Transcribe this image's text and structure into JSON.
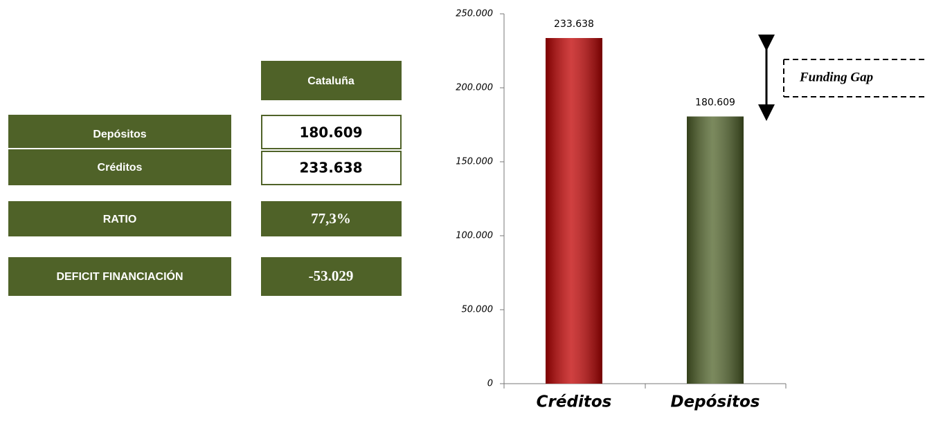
{
  "table": {
    "header": "Cataluña",
    "rows": [
      [
        "Depósitos",
        "180.609"
      ],
      [
        "Créditos",
        "233.638"
      ],
      [
        "RATIO",
        "77,3%"
      ],
      [
        "DEFICIT FINANCIACIÓN",
        "-53.029"
      ]
    ]
  },
  "chart_data": {
    "type": "bar",
    "categories": [
      "Créditos",
      "Depósitos"
    ],
    "values": [
      233638,
      180609
    ],
    "value_labels": [
      "233.638",
      "180.609"
    ],
    "colors": [
      "#c00000",
      "#4f6228"
    ],
    "ylim": [
      0,
      250000
    ],
    "yticks": [
      0,
      {
        "value": 50000,
        "label": "50.000"
      },
      {
        "value": 100000,
        "label": "100.000"
      },
      {
        "value": 150000,
        "label": "150.000"
      },
      {
        "value": 200000,
        "label": "200.000"
      },
      {
        "value": 250000,
        "label": "250.000"
      }
    ],
    "annotation": "Funding Gap"
  }
}
